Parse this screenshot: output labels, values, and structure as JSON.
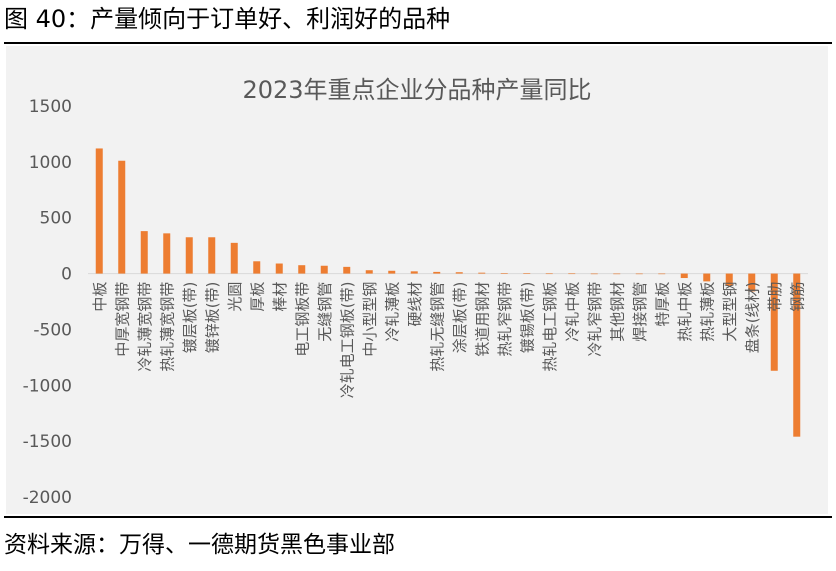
{
  "figure_title": "图 40：产量倾向于订单好、利润好的品种",
  "source": "资料来源：万得、一德期货黑色事业部",
  "colors": {
    "bar": "#ED7D31",
    "panel": "#F2F2F2",
    "axis": "#D9D9D9",
    "text": "#595959"
  },
  "chart_data": {
    "type": "bar",
    "title": "2023年重点企业分品种产量同比",
    "xlabel": "",
    "ylabel": "",
    "ylim": [
      -2000,
      1500
    ],
    "yticks": [
      1500,
      1000,
      500,
      0,
      -500,
      -1000,
      -1500,
      -2000
    ],
    "ytick_labels": [
      "1500",
      "1000",
      "500",
      "0",
      "-500",
      "-1000",
      "-1500",
      "-2000"
    ],
    "grid": false,
    "legend": "none",
    "categories": [
      "中板",
      "中厚宽钢带",
      "冷轧薄宽钢带",
      "热轧薄宽钢带",
      "镀层板(带)",
      "镀锌板(带)",
      "光圆",
      "厚板",
      "棒材",
      "电工钢板带",
      "无缝钢管",
      "冷轧电工钢板(带)",
      "中小型型钢",
      "冷轧薄板",
      "硬线材",
      "热轧无缝钢管",
      "涂层板(带)",
      "铁道用钢材",
      "热轧窄钢带",
      "镀锡板(带)",
      "热轧电工钢板",
      "冷轧中板",
      "冷轧窄钢带",
      "其他钢材",
      "焊接钢管",
      "特厚板",
      "热轧中板",
      "热轧薄板",
      "大型型钢",
      "盘条(线材)",
      "带肋",
      "钢筋"
    ],
    "values": [
      1120,
      1010,
      380,
      360,
      325,
      325,
      275,
      110,
      90,
      75,
      70,
      60,
      30,
      25,
      20,
      15,
      12,
      8,
      3,
      2,
      1,
      1,
      0,
      0,
      0,
      0,
      -40,
      -70,
      -110,
      -160,
      -870,
      -1460
    ]
  }
}
